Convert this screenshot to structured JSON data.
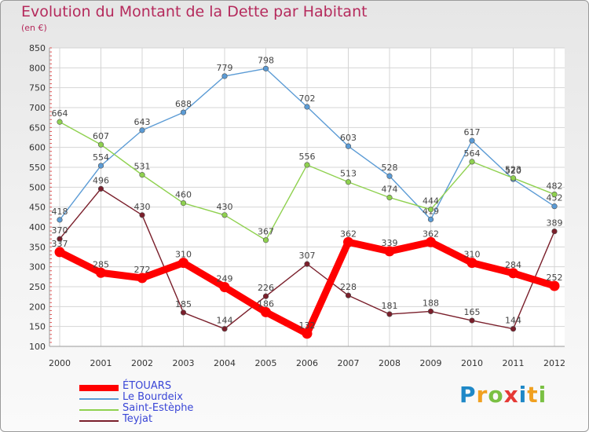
{
  "header": {
    "title": "Evolution du Montant de la Dette par Habitant",
    "subtitle": "(en €)"
  },
  "logo": {
    "letters": [
      "P",
      "r",
      "o",
      "x",
      "i",
      "t",
      "i"
    ],
    "colors": [
      "#1e88c7",
      "#f0a020",
      "#7ac043",
      "#e53935",
      "#1e88c7",
      "#f0a020",
      "#7ac043"
    ]
  },
  "chart_data": {
    "type": "line",
    "title": "Evolution du Montant de la Dette par Habitant",
    "subtitle": "(en €)",
    "x": [
      "2000",
      "2001",
      "2002",
      "2003",
      "2004",
      "2005",
      "2006",
      "2007",
      "2008",
      "2009",
      "2010",
      "2011",
      "2012"
    ],
    "ylim": [
      100,
      850
    ],
    "yticks": [
      100,
      150,
      200,
      250,
      300,
      350,
      400,
      450,
      500,
      550,
      600,
      650,
      700,
      750,
      800,
      850
    ],
    "grid": true,
    "legend_position": "bottom-left",
    "series": [
      {
        "name": "ÉTOUARS",
        "color": "#ff0000",
        "emphasis": true,
        "values": [
          337,
          285,
          272,
          310,
          249,
          186,
          132,
          362,
          339,
          362,
          310,
          284,
          252
        ]
      },
      {
        "name": "Le Bourdeix",
        "color": "#5b9bd5",
        "emphasis": false,
        "values": [
          418,
          554,
          643,
          688,
          779,
          798,
          702,
          603,
          528,
          419,
          617,
          520,
          452
        ]
      },
      {
        "name": "Saint-Estèphe",
        "color": "#8fd14f",
        "emphasis": false,
        "values": [
          664,
          607,
          531,
          460,
          430,
          367,
          556,
          513,
          474,
          444,
          564,
          523,
          482
        ]
      },
      {
        "name": "Teyjat",
        "color": "#7a1f2b",
        "emphasis": false,
        "values": [
          370,
          496,
          430,
          185,
          144,
          226,
          307,
          228,
          181,
          188,
          165,
          144,
          389
        ]
      }
    ]
  }
}
